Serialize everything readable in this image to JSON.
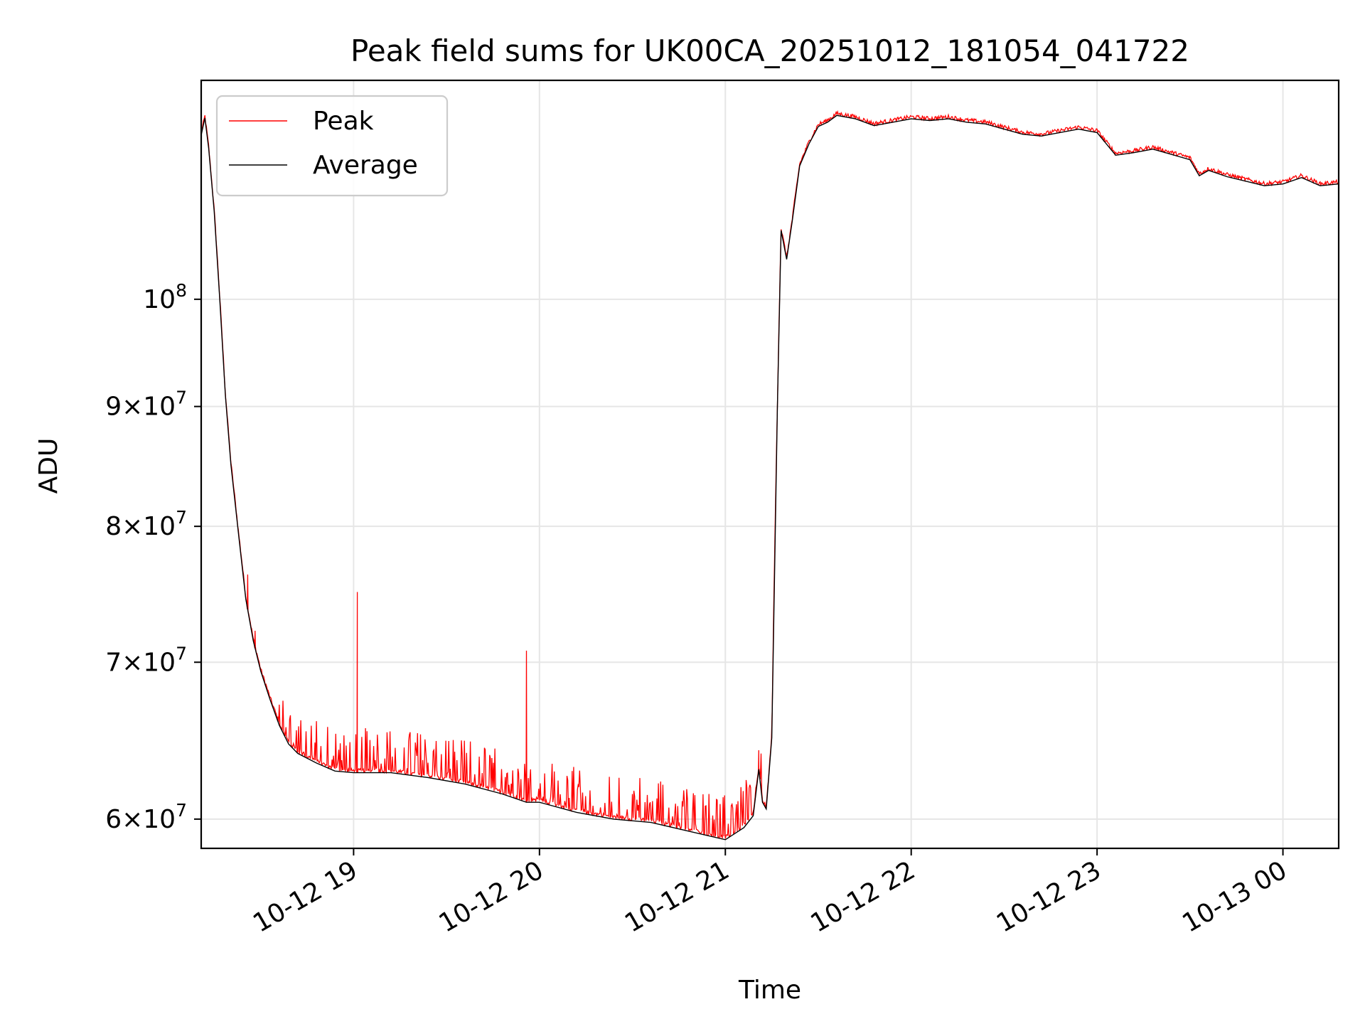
{
  "chart_data": {
    "type": "line",
    "title": "Peak field sums for UK00CA_20251012_181054_041722",
    "xlabel": "Time",
    "ylabel": "ADU",
    "yscale": "log",
    "ylim": [
      58300000,
      124000000
    ],
    "xlim_hours": [
      18.18,
      24.3
    ],
    "grid": true,
    "legend_position": "upper-left",
    "x_ticks": [
      {
        "hour": 19,
        "label": "10-12 19"
      },
      {
        "hour": 20,
        "label": "10-12 20"
      },
      {
        "hour": 21,
        "label": "10-12 21"
      },
      {
        "hour": 22,
        "label": "10-12 22"
      },
      {
        "hour": 23,
        "label": "10-12 23"
      },
      {
        "hour": 24,
        "label": "10-13 00"
      }
    ],
    "y_ticks": [
      {
        "value": 60000000,
        "mantissa": "6",
        "exp": "7"
      },
      {
        "value": 70000000,
        "mantissa": "7",
        "exp": "7"
      },
      {
        "value": 80000000,
        "mantissa": "8",
        "exp": "7"
      },
      {
        "value": 90000000,
        "mantissa": "9",
        "exp": "7"
      },
      {
        "value": 100000000,
        "mantissa": "",
        "exp": "8"
      }
    ],
    "series": [
      {
        "name": "Peak",
        "color": "#ff0000",
        "spikes": [
          {
            "hour": 18.43,
            "value": 76300000
          },
          {
            "hour": 18.47,
            "value": 72200000
          },
          {
            "hour": 19.02,
            "value": 75000000
          },
          {
            "hour": 19.93,
            "value": 70800000
          },
          {
            "hour": 21.18,
            "value": 64200000
          }
        ]
      },
      {
        "name": "Average",
        "color": "#000000",
        "points": [
          [
            18.18,
            117500000
          ],
          [
            18.2,
            119500000
          ],
          [
            18.22,
            116000000
          ],
          [
            18.25,
            109000000
          ],
          [
            18.28,
            100000000
          ],
          [
            18.31,
            91000000
          ],
          [
            18.34,
            85000000
          ],
          [
            18.38,
            79500000
          ],
          [
            18.42,
            74500000
          ],
          [
            18.46,
            71500000
          ],
          [
            18.5,
            69400000
          ],
          [
            18.55,
            67500000
          ],
          [
            18.6,
            65800000
          ],
          [
            18.65,
            64600000
          ],
          [
            18.7,
            64000000
          ],
          [
            18.8,
            63400000
          ],
          [
            18.9,
            62900000
          ],
          [
            19.0,
            62800000
          ],
          [
            19.2,
            62800000
          ],
          [
            19.4,
            62500000
          ],
          [
            19.6,
            62100000
          ],
          [
            19.8,
            61500000
          ],
          [
            19.93,
            61000000
          ],
          [
            20.0,
            61000000
          ],
          [
            20.2,
            60400000
          ],
          [
            20.4,
            60000000
          ],
          [
            20.6,
            59800000
          ],
          [
            20.8,
            59300000
          ],
          [
            21.0,
            58800000
          ],
          [
            21.1,
            59500000
          ],
          [
            21.15,
            60200000
          ],
          [
            21.18,
            63000000
          ],
          [
            21.2,
            61000000
          ],
          [
            21.22,
            60600000
          ],
          [
            21.25,
            65000000
          ],
          [
            21.28,
            90000000
          ],
          [
            21.3,
            107000000
          ],
          [
            21.33,
            104000000
          ],
          [
            21.36,
            108000000
          ],
          [
            21.4,
            114000000
          ],
          [
            21.45,
            116500000
          ],
          [
            21.5,
            118500000
          ],
          [
            21.55,
            119000000
          ],
          [
            21.6,
            119800000
          ],
          [
            21.7,
            119400000
          ],
          [
            21.8,
            118600000
          ],
          [
            21.9,
            119000000
          ],
          [
            22.0,
            119400000
          ],
          [
            22.1,
            119200000
          ],
          [
            22.2,
            119400000
          ],
          [
            22.3,
            119000000
          ],
          [
            22.4,
            118800000
          ],
          [
            22.5,
            118200000
          ],
          [
            22.6,
            117600000
          ],
          [
            22.7,
            117400000
          ],
          [
            22.8,
            117800000
          ],
          [
            22.9,
            118200000
          ],
          [
            23.0,
            117800000
          ],
          [
            23.05,
            116500000
          ],
          [
            23.1,
            115200000
          ],
          [
            23.2,
            115500000
          ],
          [
            23.3,
            115900000
          ],
          [
            23.4,
            115300000
          ],
          [
            23.5,
            114700000
          ],
          [
            23.55,
            112900000
          ],
          [
            23.6,
            113500000
          ],
          [
            23.7,
            112800000
          ],
          [
            23.8,
            112300000
          ],
          [
            23.9,
            111800000
          ],
          [
            24.0,
            112000000
          ],
          [
            24.1,
            112700000
          ],
          [
            24.2,
            111800000
          ],
          [
            24.3,
            112000000
          ]
        ]
      }
    ]
  }
}
